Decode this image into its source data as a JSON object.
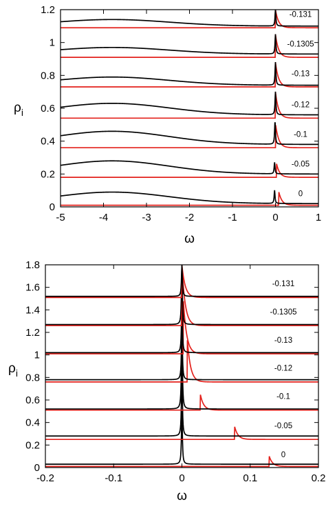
{
  "chart_data": [
    {
      "type": "line",
      "xlabel": "ω",
      "ylabel": "ρ",
      "ylabel_subscript": "i",
      "xlim": [
        -5,
        1
      ],
      "ylim": [
        0,
        1.2
      ],
      "xticks": [
        "-5",
        "-4",
        "-3",
        "-2",
        "-1",
        "0",
        "1"
      ],
      "yticks": [
        "0",
        "0.2",
        "0.4",
        "0.6",
        "0.8",
        "1",
        "1.2"
      ],
      "grid": false,
      "colors": {
        "black_series": "#000000",
        "red_series": "#e3201b"
      },
      "annotations": [
        "-0.131",
        "-0.1305",
        "-0.13",
        "-0.12",
        "-0.1",
        "-0.05",
        "0"
      ],
      "series": [
        {
          "label": "0",
          "color": "red",
          "peak_x": 0.08,
          "peak_y": 0.09,
          "baseline_y": 0.01
        },
        {
          "label": "0",
          "color": "black",
          "peak_x": -0.02,
          "peak_y": 0.1,
          "baseline_y": 0.02,
          "hump_x": -3.8,
          "hump_y": 0.09
        },
        {
          "label": "-0.05",
          "color": "red",
          "peak_x": 0.02,
          "peak_y": 0.27,
          "baseline_y": 0.18
        },
        {
          "label": "-0.05",
          "color": "black",
          "peak_x": -0.02,
          "peak_y": 0.27,
          "baseline_y": 0.2,
          "hump_x": -3.8,
          "hump_y": 0.28
        },
        {
          "label": "-0.1",
          "color": "red",
          "peak_x": 0.005,
          "peak_y": 0.5,
          "baseline_y": 0.36
        },
        {
          "label": "-0.1",
          "color": "black",
          "peak_x": -0.01,
          "peak_y": 0.52,
          "baseline_y": 0.38,
          "hump_x": -3.8,
          "hump_y": 0.46
        },
        {
          "label": "-0.12",
          "color": "red",
          "peak_x": 0.0,
          "peak_y": 0.7,
          "baseline_y": 0.54
        },
        {
          "label": "-0.12",
          "color": "black",
          "peak_x": 0.0,
          "peak_y": 0.7,
          "baseline_y": 0.56,
          "hump_x": -3.8,
          "hump_y": 0.63
        },
        {
          "label": "-0.13",
          "color": "red",
          "peak_x": 0.0,
          "peak_y": 0.88,
          "baseline_y": 0.73
        },
        {
          "label": "-0.13",
          "color": "black",
          "peak_x": 0.0,
          "peak_y": 0.88,
          "baseline_y": 0.74,
          "hump_x": -3.8,
          "hump_y": 0.79
        },
        {
          "label": "-0.1305",
          "color": "red",
          "peak_x": 0.0,
          "peak_y": 1.05,
          "baseline_y": 0.91
        },
        {
          "label": "-0.1305",
          "color": "black",
          "peak_x": 0.0,
          "peak_y": 1.05,
          "baseline_y": 0.93,
          "hump_x": -3.8,
          "hump_y": 0.97
        },
        {
          "label": "-0.131",
          "color": "red",
          "peak_x": 0.0,
          "peak_y": 1.2,
          "baseline_y": 1.09
        },
        {
          "label": "-0.131",
          "color": "black",
          "peak_x": 0.0,
          "peak_y": 1.2,
          "baseline_y": 1.1,
          "hump_x": -3.8,
          "hump_y": 1.14
        }
      ]
    },
    {
      "type": "line",
      "xlabel": "ω",
      "ylabel": "ρ",
      "ylabel_subscript": "i",
      "xlim": [
        -0.2,
        0.2
      ],
      "ylim": [
        0,
        1.8
      ],
      "xticks": [
        "-0.2",
        "-0.1",
        "0",
        "0.1",
        "0.2"
      ],
      "yticks": [
        "0",
        "0.2",
        "0.4",
        "0.6",
        "0.8",
        "1",
        "1.2",
        "1.4",
        "1.6",
        "1.8"
      ],
      "grid": false,
      "colors": {
        "black_series": "#000000",
        "red_series": "#e3201b"
      },
      "annotations": [
        "-0.131",
        "-0.1305",
        "-0.13",
        "-0.12",
        "-0.1",
        "-0.05",
        "0"
      ],
      "series": [
        {
          "label": "0",
          "color": "red",
          "peak_x": 0.128,
          "peak_y": 0.1,
          "baseline_y": 0.01
        },
        {
          "label": "0",
          "color": "black",
          "peak_x": 0.0,
          "peak_y": 0.5,
          "baseline_y": 0.03
        },
        {
          "label": "-0.05",
          "color": "red",
          "peak_x": 0.077,
          "peak_y": 0.37,
          "baseline_y": 0.25
        },
        {
          "label": "-0.05",
          "color": "black",
          "peak_x": 0.0,
          "peak_y": 0.9,
          "baseline_y": 0.28
        },
        {
          "label": "-0.1",
          "color": "red",
          "peak_x": 0.027,
          "peak_y": 0.65,
          "baseline_y": 0.51
        },
        {
          "label": "-0.1",
          "color": "black",
          "peak_x": 0.0,
          "peak_y": 1.3,
          "baseline_y": 0.52
        },
        {
          "label": "-0.12",
          "color": "red",
          "peak_x": 0.008,
          "peak_y": 1.13,
          "baseline_y": 0.76
        },
        {
          "label": "-0.12",
          "color": "black",
          "peak_x": 0.0,
          "peak_y": 1.3,
          "baseline_y": 0.78
        },
        {
          "label": "-0.13",
          "color": "red",
          "peak_x": 0.002,
          "peak_y": 1.5,
          "baseline_y": 1.01
        },
        {
          "label": "-0.13",
          "color": "black",
          "peak_x": 0.0,
          "peak_y": 1.5,
          "baseline_y": 1.02
        },
        {
          "label": "-0.1305",
          "color": "red",
          "peak_x": 0.0,
          "peak_y": 1.8,
          "baseline_y": 1.26
        },
        {
          "label": "-0.1305",
          "color": "black",
          "peak_x": 0.0,
          "peak_y": 1.8,
          "baseline_y": 1.27
        },
        {
          "label": "-0.131",
          "color": "red",
          "peak_x": 0.0,
          "peak_y": 1.8,
          "baseline_y": 1.51
        },
        {
          "label": "-0.131",
          "color": "black",
          "peak_x": 0.0,
          "peak_y": 1.8,
          "baseline_y": 1.52
        }
      ]
    }
  ]
}
